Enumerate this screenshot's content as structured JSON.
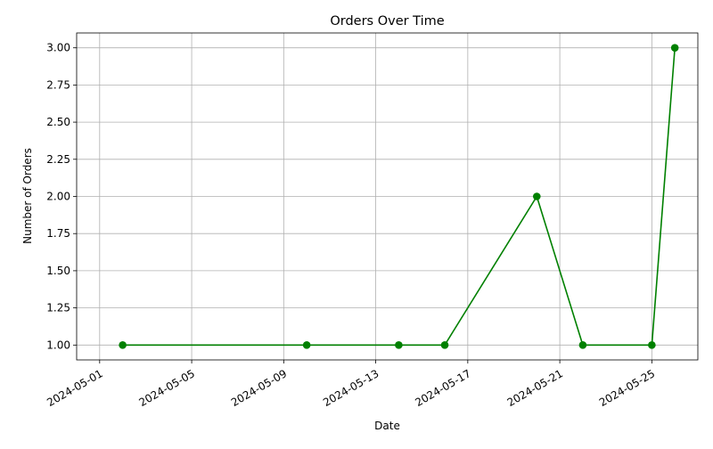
{
  "chart_data": {
    "type": "line",
    "title": "Orders Over Time",
    "xlabel": "Date",
    "ylabel": "Number of Orders",
    "grid": true,
    "x_ticks": [
      "2024-05-01",
      "2024-05-05",
      "2024-05-09",
      "2024-05-13",
      "2024-05-17",
      "2024-05-21",
      "2024-05-25"
    ],
    "x_range": [
      "2024-04-30",
      "2024-05-27"
    ],
    "y_ticks": [
      "1.00",
      "1.25",
      "1.50",
      "1.75",
      "2.00",
      "2.25",
      "2.50",
      "2.75",
      "3.00"
    ],
    "ylim": [
      0.9,
      3.1
    ],
    "series": [
      {
        "color": "#008000",
        "marker": "circle",
        "points": [
          {
            "x": "2024-05-02",
            "y": 1
          },
          {
            "x": "2024-05-10",
            "y": 1
          },
          {
            "x": "2024-05-14",
            "y": 1
          },
          {
            "x": "2024-05-16",
            "y": 1
          },
          {
            "x": "2024-05-20",
            "y": 2
          },
          {
            "x": "2024-05-22",
            "y": 1
          },
          {
            "x": "2024-05-25",
            "y": 1
          },
          {
            "x": "2024-05-26",
            "y": 3
          }
        ]
      }
    ]
  }
}
